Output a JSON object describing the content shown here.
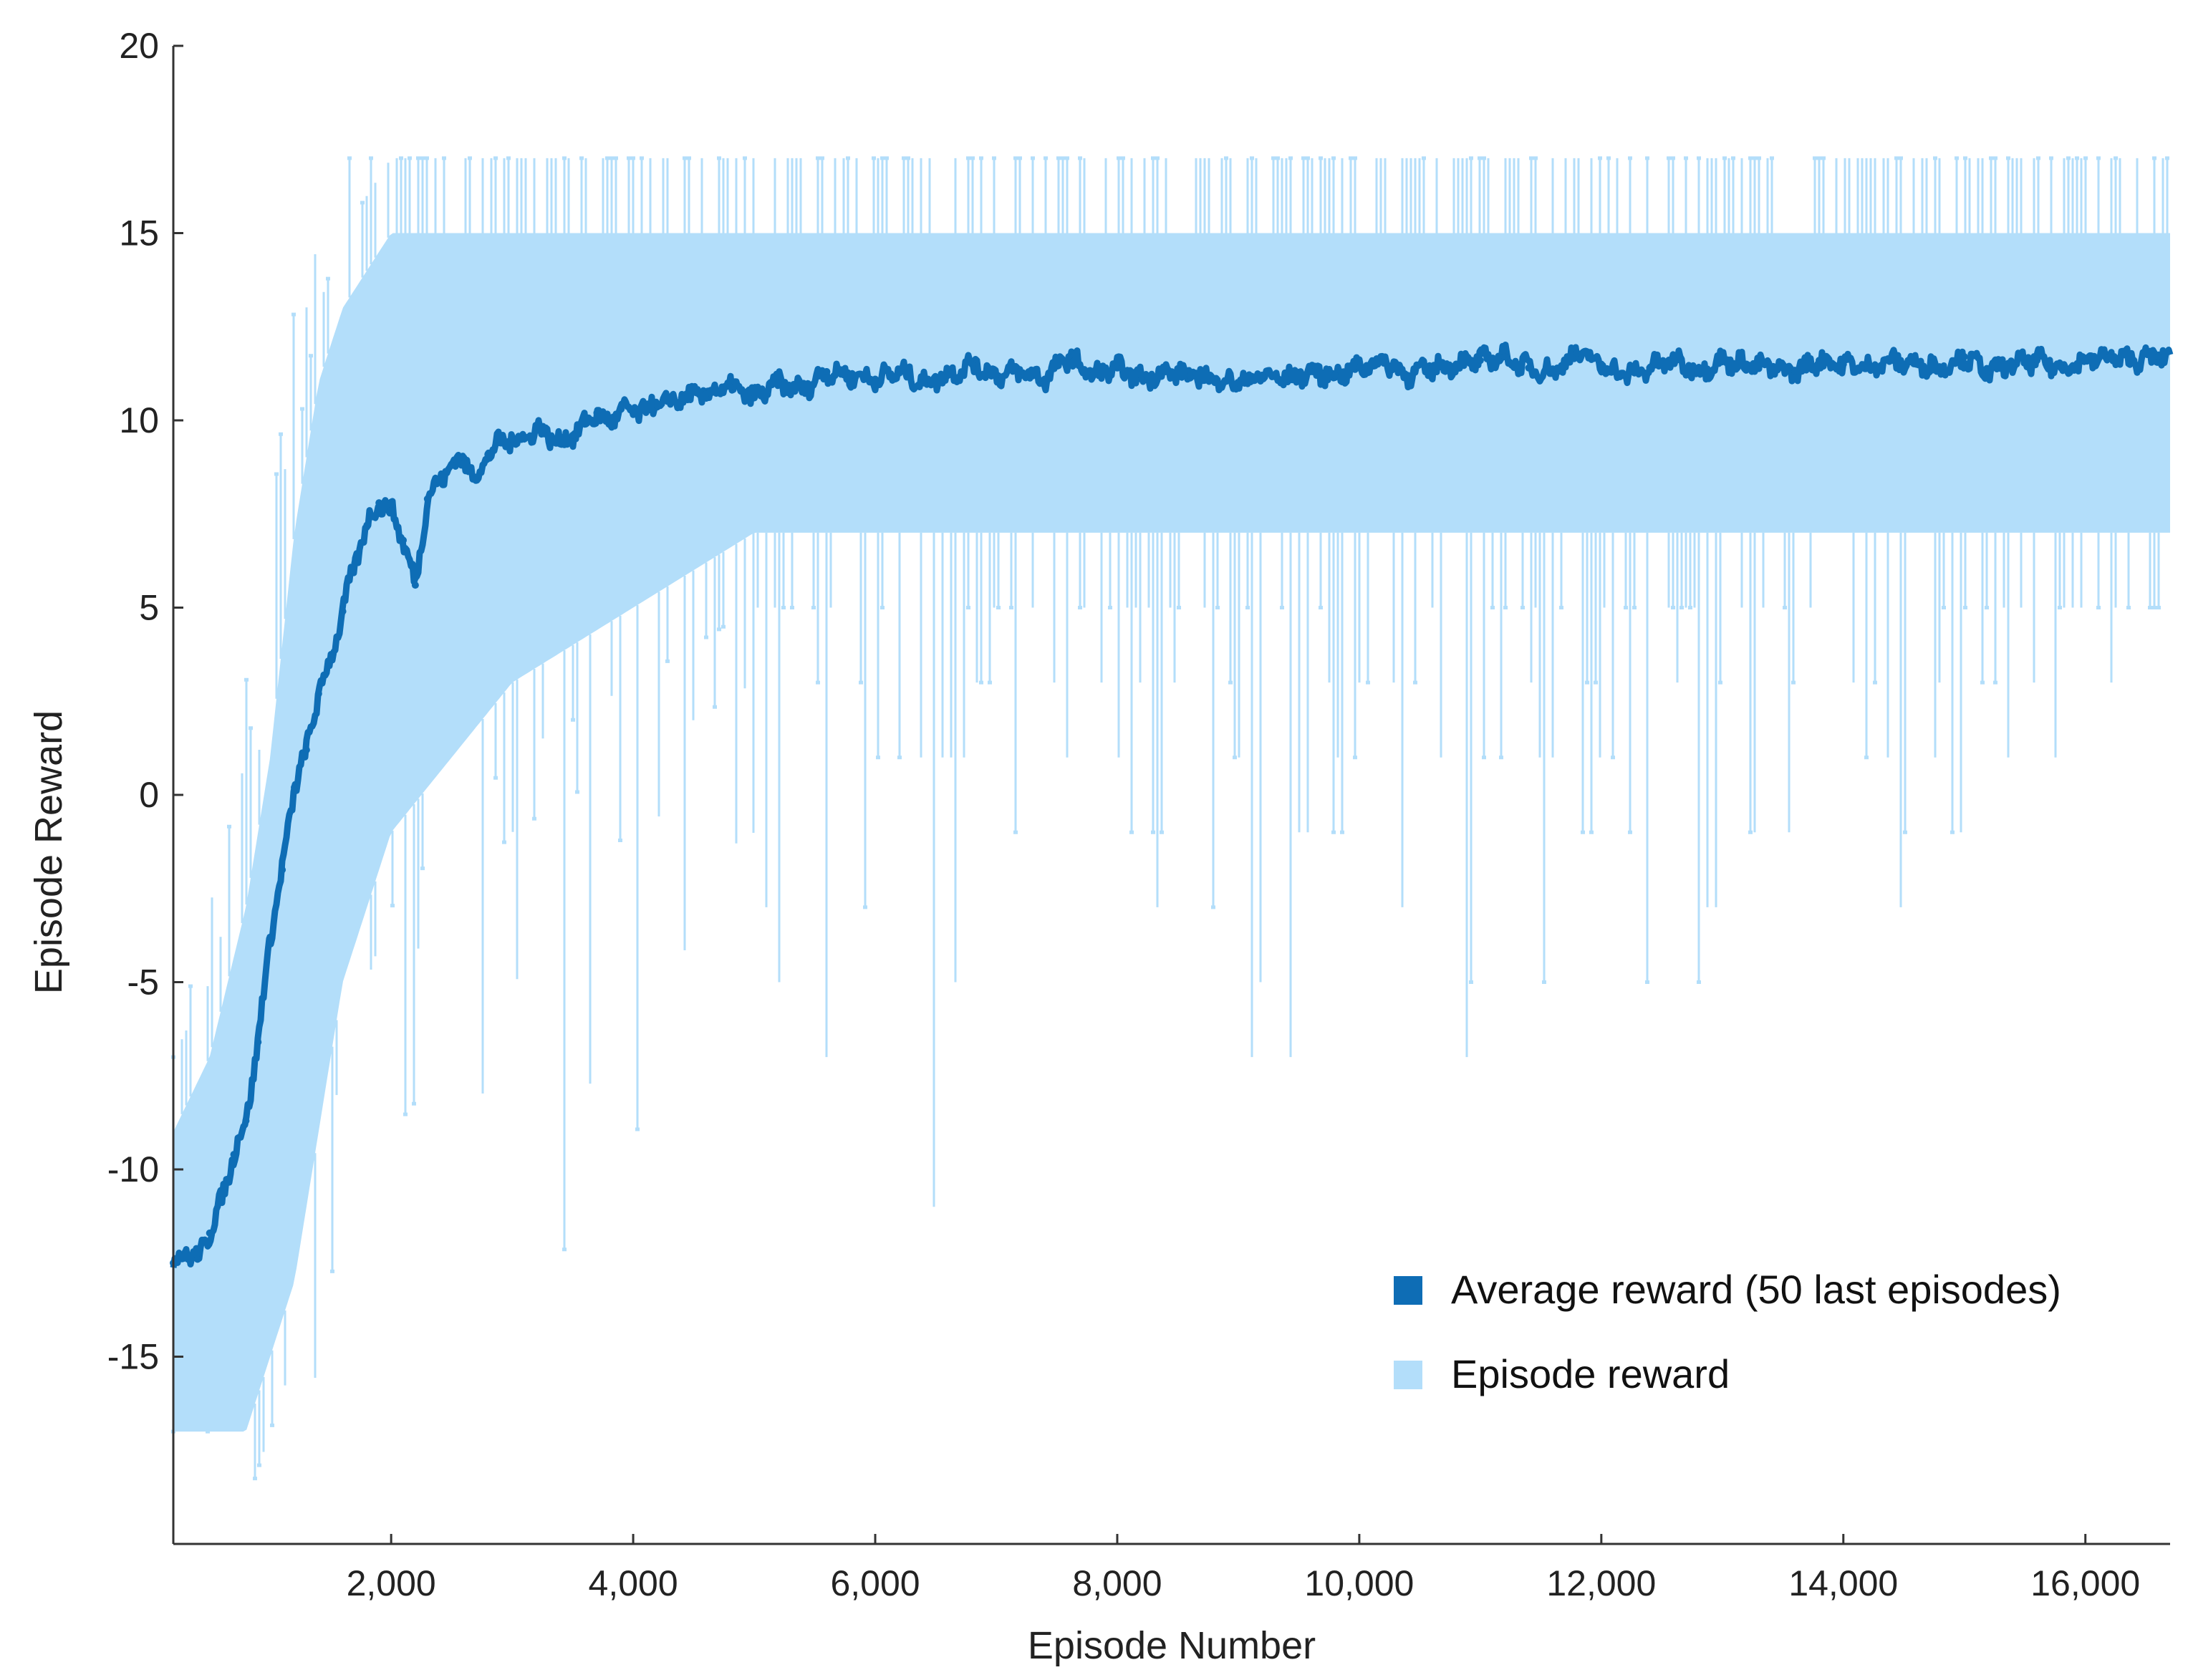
{
  "chart_data": {
    "type": "line",
    "title": "",
    "xlabel": "Episode Number",
    "ylabel": "Episode Reward",
    "xlim": [
      200,
      16700
    ],
    "ylim": [
      -20,
      20
    ],
    "x_ticks": [
      2000,
      4000,
      6000,
      8000,
      10000,
      12000,
      14000,
      16000
    ],
    "x_tick_labels": [
      "2,000",
      "4,000",
      "6,000",
      "8,000",
      "10,000",
      "12,000",
      "14,000",
      "16,000"
    ],
    "y_ticks": [
      -15,
      -10,
      -5,
      0,
      5,
      10,
      15,
      20
    ],
    "y_tick_labels": [
      "-15",
      "-10",
      "-5",
      "0",
      "5",
      "10",
      "15",
      "20"
    ],
    "grid": false,
    "legend_position": "bottom-right",
    "series": [
      {
        "name": "Episode reward",
        "color": "#b3defa",
        "style": "noisy-band",
        "band_upper": {
          "x": [
            200,
            500,
            800,
            1000,
            1200,
            1400,
            1600,
            2000,
            2500,
            3000,
            16700
          ],
          "y": [
            -7,
            -3,
            3,
            9,
            13,
            15,
            17,
            17,
            17,
            17,
            17
          ]
        },
        "dense_upper": {
          "x": [
            200,
            500,
            800,
            1000,
            1200,
            1400,
            1600,
            2000,
            2500,
            3000,
            16700
          ],
          "y": [
            -9,
            -7,
            -3,
            1,
            7,
            11,
            13,
            15,
            15,
            15,
            15
          ]
        },
        "dense_lower": {
          "x": [
            200,
            500,
            800,
            1000,
            1200,
            1400,
            1600,
            2000,
            2500,
            3000,
            4000,
            5000,
            16700
          ],
          "y": [
            -17,
            -17,
            -17,
            -15,
            -13,
            -9,
            -5,
            -1,
            1,
            3,
            5,
            7,
            7
          ]
        },
        "band_lower": {
          "x": [
            200,
            900,
            1000,
            1600,
            1700,
            2300,
            2500,
            3000,
            4400,
            5000,
            6500,
            7000,
            9000,
            12000,
            16700
          ],
          "y": [
            -17,
            -17,
            -15,
            -17,
            -13,
            -13,
            -9,
            -11,
            -15,
            -7,
            -13,
            -5,
            -9,
            -9,
            -1
          ]
        }
      },
      {
        "name": "Average reward (50 last episodes)",
        "color": "#0e6db5",
        "x": [
          200,
          300,
          400,
          500,
          600,
          700,
          800,
          900,
          1000,
          1100,
          1200,
          1300,
          1400,
          1500,
          1600,
          1700,
          1800,
          1900,
          2000,
          2100,
          2200,
          2300,
          2400,
          2500,
          2600,
          2700,
          2800,
          2900,
          3000,
          3100,
          3200,
          3300,
          3400,
          3500,
          3600,
          3700,
          3800,
          3900,
          4000,
          4200,
          4400,
          4600,
          4800,
          5000,
          5200,
          5400,
          5600,
          5800,
          6000,
          6200,
          6400,
          6600,
          6800,
          7000,
          7200,
          7400,
          7600,
          7800,
          8000,
          8200,
          8400,
          8600,
          8800,
          9000,
          9200,
          9400,
          9600,
          9800,
          10000,
          10200,
          10400,
          10600,
          10800,
          11000,
          11200,
          11400,
          11600,
          11800,
          12000,
          12200,
          12400,
          12600,
          12800,
          13000,
          13200,
          13400,
          13600,
          13800,
          14000,
          14200,
          14400,
          14600,
          14800,
          15000,
          15200,
          15400,
          15600,
          15800,
          16000,
          16200,
          16400,
          16600
        ],
        "y": [
          -12.5,
          -12.2,
          -12.4,
          -11.7,
          -10.8,
          -9.6,
          -8.7,
          -6.6,
          -3.8,
          -2.0,
          0.2,
          1.2,
          2.7,
          3.6,
          4.9,
          6.2,
          7.2,
          7.8,
          7.6,
          6.8,
          5.6,
          7.9,
          8.4,
          8.8,
          9.0,
          8.4,
          9.1,
          9.4,
          9.5,
          9.5,
          9.8,
          9.6,
          9.4,
          9.6,
          9.9,
          10.2,
          9.9,
          10.3,
          10.2,
          10.4,
          10.6,
          10.7,
          10.9,
          10.6,
          11.0,
          10.8,
          11.3,
          11.2,
          11.1,
          11.3,
          11.0,
          11.2,
          11.5,
          11.2,
          11.3,
          11.1,
          11.7,
          11.2,
          11.4,
          11.1,
          11.3,
          11.2,
          11.1,
          11.0,
          11.2,
          11.1,
          11.3,
          11.2,
          11.4,
          11.6,
          11.2,
          11.4,
          11.5,
          11.6,
          11.7,
          11.4,
          11.3,
          11.8,
          11.5,
          11.2,
          11.4,
          11.6,
          11.3,
          11.6,
          11.5,
          11.4,
          11.3,
          11.6,
          11.5,
          11.4,
          11.6,
          11.5,
          11.4,
          11.7,
          11.3,
          11.5,
          11.6,
          11.4,
          11.6,
          11.7,
          11.6,
          11.7
        ]
      }
    ],
    "legend": [
      {
        "label": "Average reward (50 last episodes)",
        "color": "#0e6db5"
      },
      {
        "label": "Episode reward",
        "color": "#b3defa"
      }
    ]
  }
}
